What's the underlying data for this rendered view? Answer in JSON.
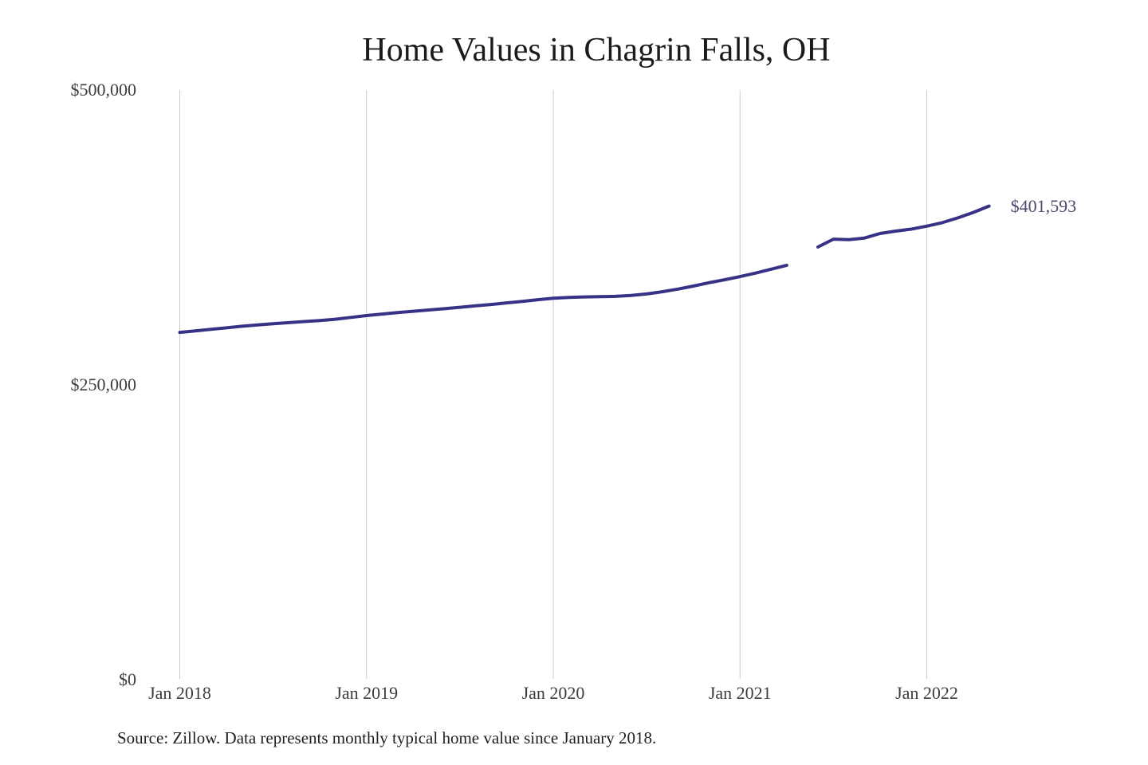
{
  "title": "Home Values in Chagrin Falls, OH",
  "source_note": "Source: Zillow. Data represents monthly typical home value since January 2018.",
  "colors": {
    "line": "#383287",
    "end_label_text": "#4c4a6b",
    "gridline": "#cccccc",
    "axis_text": "#3d3d3d",
    "title_text": "#1b1b1b"
  },
  "chart_data": {
    "type": "line",
    "title": "Home Values in Chagrin Falls, OH",
    "xlabel": "",
    "ylabel": "",
    "ylim": [
      0,
      500000
    ],
    "grid": "vertical-only",
    "legend": "none",
    "final_value_label": "$401,593",
    "final_value": 401593,
    "y_ticks": [
      {
        "label": "$0",
        "value": 0
      },
      {
        "label": "$250,000",
        "value": 250000
      },
      {
        "label": "$500,000",
        "value": 500000
      }
    ],
    "x_ticks": [
      {
        "label": "Jan 2018",
        "month_index": 0
      },
      {
        "label": "Jan 2019",
        "month_index": 12
      },
      {
        "label": "Jan 2020",
        "month_index": 24
      },
      {
        "label": "Jan 2021",
        "month_index": 36
      },
      {
        "label": "Jan 2022",
        "month_index": 48
      }
    ],
    "x": [
      "Jan 2018",
      "Feb 2018",
      "Mar 2018",
      "Apr 2018",
      "May 2018",
      "Jun 2018",
      "Jul 2018",
      "Aug 2018",
      "Sep 2018",
      "Oct 2018",
      "Nov 2018",
      "Dec 2018",
      "Jan 2019",
      "Feb 2019",
      "Mar 2019",
      "Apr 2019",
      "May 2019",
      "Jun 2019",
      "Jul 2019",
      "Aug 2019",
      "Sep 2019",
      "Oct 2019",
      "Nov 2019",
      "Dec 2019",
      "Jan 2020",
      "Feb 2020",
      "Mar 2020",
      "Apr 2020",
      "May 2020",
      "Jun 2020",
      "Jul 2020",
      "Aug 2020",
      "Sep 2020",
      "Oct 2020",
      "Nov 2020",
      "Dec 2020",
      "Jan 2021",
      "Feb 2021",
      "Mar 2021",
      "Apr 2021",
      "May 2021",
      "Jun 2021",
      "Jul 2021",
      "Aug 2021",
      "Sep 2021",
      "Oct 2021",
      "Nov 2021",
      "Dec 2021",
      "Jan 2022",
      "Feb 2022",
      "Mar 2022",
      "Apr 2022",
      "May 2022"
    ],
    "series": [
      {
        "name": "Typical home value",
        "values": [
          294500,
          295800,
          297100,
          298400,
          299700,
          300800,
          301800,
          302800,
          303700,
          304600,
          305700,
          307200,
          308800,
          310100,
          311300,
          312400,
          313500,
          314600,
          315800,
          317000,
          318200,
          319500,
          320800,
          322200,
          323500,
          324200,
          324600,
          324800,
          325100,
          325900,
          327100,
          329000,
          331200,
          333800,
          336600,
          339100,
          341800,
          344800,
          348100,
          351400,
          null,
          366900,
          373600,
          373100,
          374500,
          378400,
          380400,
          382100,
          384600,
          387600,
          391600,
          396300,
          401593
        ]
      }
    ]
  }
}
